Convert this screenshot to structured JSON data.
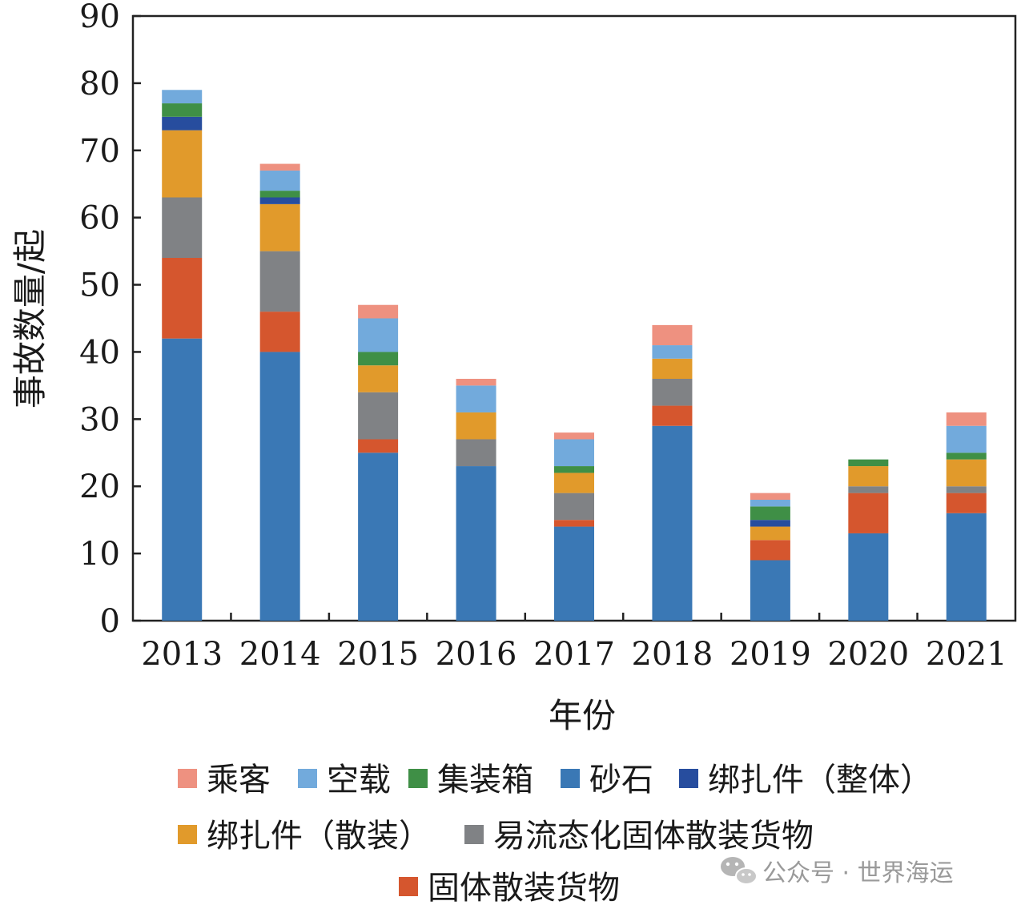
{
  "chart_data": {
    "type": "bar",
    "stacked": true,
    "categories": [
      "2013",
      "2014",
      "2015",
      "2016",
      "2017",
      "2018",
      "2019",
      "2020",
      "2021"
    ],
    "xlabel": "年份",
    "ylabel": "事故数量/起",
    "ylim": [
      0,
      90
    ],
    "yticks": [
      0,
      10,
      20,
      30,
      40,
      50,
      60,
      70,
      80,
      90
    ],
    "legend_position": "bottom",
    "series": [
      {
        "name": "砂石",
        "color": "#3a78b5",
        "values": [
          42,
          40,
          25,
          23,
          14,
          29,
          9,
          13,
          16
        ]
      },
      {
        "name": "固体散装货物",
        "color": "#d5562e",
        "values": [
          12,
          6,
          2,
          0,
          1,
          3,
          3,
          6,
          3
        ]
      },
      {
        "name": "易流态化固体散装货物",
        "color": "#808285",
        "values": [
          9,
          9,
          7,
          4,
          4,
          4,
          0,
          1,
          1
        ]
      },
      {
        "name": "绑扎件（散装）",
        "color": "#e19a2b",
        "values": [
          10,
          7,
          4,
          4,
          3,
          3,
          2,
          3,
          4
        ]
      },
      {
        "name": "绑扎件（整体）",
        "color": "#274d9e",
        "values": [
          2,
          1,
          0,
          0,
          0,
          0,
          1,
          0,
          0
        ]
      },
      {
        "name": "集装箱",
        "color": "#3f8f46",
        "values": [
          2,
          1,
          2,
          0,
          1,
          0,
          2,
          1,
          1
        ]
      },
      {
        "name": "空载",
        "color": "#72aadc",
        "values": [
          2,
          3,
          5,
          4,
          4,
          2,
          1,
          0,
          4
        ]
      },
      {
        "name": "乘客",
        "color": "#ee9180",
        "values": [
          0,
          1,
          2,
          1,
          1,
          3,
          1,
          0,
          2
        ]
      }
    ],
    "legend_rows": [
      [
        "乘客",
        "空载",
        "集装箱",
        "砂石",
        "绑扎件（整体）"
      ],
      [
        "绑扎件（散装）",
        "易流态化固体散装货物"
      ],
      [
        "固体散装货物"
      ]
    ]
  },
  "watermark": {
    "text": "公众号 · 世界海运",
    "icon": "wechat-icon"
  }
}
